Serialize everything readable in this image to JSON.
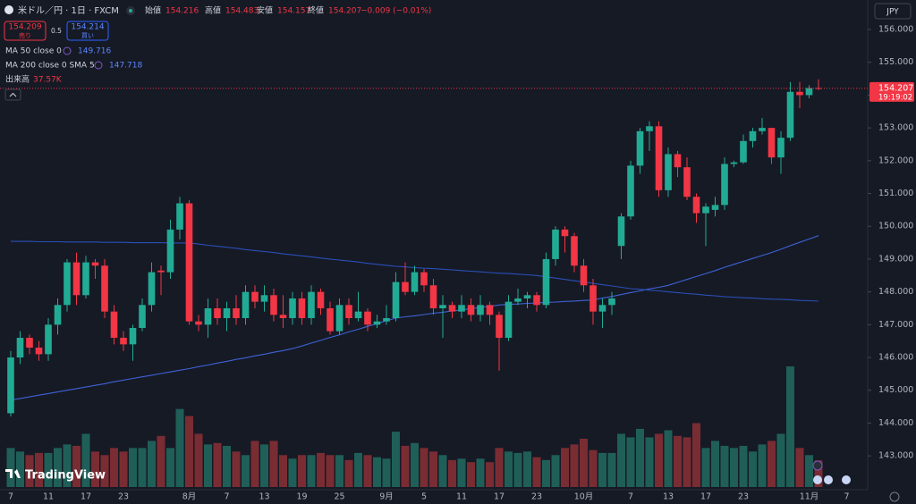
{
  "chart_data": {
    "type": "candlestick",
    "title": "米ドル／円 · 1日 · FXCM",
    "header_labels": {
      "open": "始値",
      "high": "高値",
      "low": "安値",
      "close": "終値"
    },
    "change": "−0.009 (−0.01%)",
    "sell": {
      "price": "154.209",
      "label": "売り"
    },
    "spread": "0.5",
    "buy": {
      "price": "154.214",
      "label": "買い"
    },
    "currency": "JPY",
    "countdown": "19:19:02",
    "brand": "TradingView",
    "volume_name": "出来高",
    "volume_label": "37.57K",
    "up_color": "#22ab94",
    "down_color": "#f23645",
    "volume_up_color": "#1f5f58",
    "volume_down_color": "#7a2c33",
    "grid": false,
    "ylim": [
      142.05,
      156.9
    ],
    "yticks": [
      {
        "value": 143,
        "label": "143.000"
      },
      {
        "value": 144,
        "label": "144.000"
      },
      {
        "value": 145,
        "label": "145.000"
      },
      {
        "value": 146,
        "label": "146.000"
      },
      {
        "value": 147,
        "label": "147.000"
      },
      {
        "value": 148,
        "label": "148.000"
      },
      {
        "value": 149,
        "label": "149.000"
      },
      {
        "value": 150,
        "label": "150.000"
      },
      {
        "value": 151,
        "label": "151.000"
      },
      {
        "value": 152,
        "label": "152.000"
      },
      {
        "value": 153,
        "label": "153.000"
      },
      {
        "value": 154,
        "label": "154.000"
      },
      {
        "value": 155,
        "label": "155.000"
      },
      {
        "value": 156,
        "label": "156.000"
      }
    ],
    "categories": [
      "7",
      null,
      null,
      null,
      "11",
      null,
      null,
      null,
      "17",
      null,
      null,
      null,
      "23",
      null,
      null,
      null,
      null,
      null,
      null,
      "8月",
      null,
      null,
      null,
      "7",
      null,
      null,
      null,
      "13",
      null,
      null,
      null,
      "19",
      null,
      null,
      null,
      "25",
      null,
      null,
      null,
      null,
      "9月",
      null,
      null,
      null,
      "5",
      null,
      null,
      null,
      "11",
      null,
      null,
      null,
      "17",
      null,
      null,
      null,
      "23",
      null,
      null,
      null,
      null,
      "10月",
      null,
      null,
      null,
      null,
      "7",
      null,
      null,
      null,
      "13",
      null,
      null,
      null,
      "17",
      null,
      null,
      null,
      "23",
      null,
      null,
      null,
      null,
      null,
      null,
      "11月",
      null,
      null,
      null,
      "7"
    ],
    "open": [
      144.3,
      146.0,
      146.6,
      146.3,
      146.1,
      147.0,
      147.6,
      148.9,
      147.9,
      148.9,
      148.8,
      147.4,
      146.6,
      146.4,
      146.9,
      147.6,
      148.65,
      148.6,
      149.9,
      150.7,
      147.1,
      147.0,
      147.5,
      147.2,
      147.5,
      147.2,
      148.0,
      147.7,
      147.9,
      147.3,
      147.2,
      147.8,
      147.2,
      148.0,
      147.5,
      146.8,
      147.6,
      147.2,
      147.4,
      147.0,
      147.1,
      147.2,
      148.3,
      148.0,
      148.6,
      148.2,
      147.5,
      147.6,
      147.4,
      147.6,
      147.3,
      147.6,
      147.3,
      146.6,
      147.7,
      147.8,
      147.9,
      147.6,
      149.0,
      149.9,
      149.7,
      148.8,
      148.2,
      147.4,
      147.6,
      149.4,
      150.3,
      151.85,
      152.9,
      153.05,
      151.1,
      152.2,
      151.8,
      150.9,
      150.4,
      150.5,
      150.65,
      151.9,
      151.95,
      152.6,
      152.9,
      153.0,
      152.1,
      152.7,
      154.1,
      154.0,
      154.216,
      null,
      null,
      null
    ],
    "high": [
      146.2,
      146.8,
      146.7,
      146.5,
      147.2,
      147.8,
      149.0,
      149.2,
      149.1,
      149.0,
      149.0,
      147.6,
      146.8,
      147.0,
      147.8,
      148.9,
      148.8,
      150.2,
      150.9,
      150.8,
      147.3,
      147.8,
      147.8,
      147.7,
      147.9,
      148.2,
      148.2,
      148.2,
      148.1,
      147.9,
      148.0,
      148.0,
      148.2,
      148.1,
      147.7,
      147.8,
      147.8,
      148.0,
      147.5,
      147.3,
      147.6,
      148.6,
      148.9,
      148.8,
      148.7,
      148.4,
      147.9,
      147.7,
      147.9,
      147.8,
      147.9,
      147.7,
      147.4,
      147.9,
      148.1,
      148.0,
      148.0,
      149.2,
      150.0,
      150.0,
      149.8,
      149.0,
      148.4,
      147.8,
      148.0,
      150.4,
      152.0,
      153.0,
      153.2,
      153.2,
      152.4,
      152.3,
      152.1,
      151.0,
      150.7,
      150.9,
      152.1,
      152.0,
      152.8,
      153.0,
      153.3,
      153.0,
      152.9,
      154.4,
      154.4,
      154.3,
      154.483,
      null,
      null,
      null
    ],
    "low": [
      144.2,
      145.8,
      146.1,
      145.9,
      145.9,
      146.7,
      147.4,
      147.6,
      147.8,
      148.4,
      147.2,
      146.4,
      146.2,
      145.9,
      146.8,
      147.4,
      147.9,
      148.4,
      149.6,
      147.0,
      146.8,
      146.6,
      147.0,
      146.8,
      147.0,
      147.0,
      147.5,
      147.4,
      147.1,
      146.9,
      147.0,
      147.0,
      147.0,
      147.3,
      146.7,
      146.7,
      147.0,
      147.1,
      146.8,
      146.9,
      147.0,
      147.1,
      147.9,
      147.9,
      148.0,
      147.3,
      146.6,
      147.2,
      147.2,
      147.1,
      147.1,
      147.0,
      145.6,
      146.5,
      147.6,
      147.5,
      147.4,
      147.5,
      148.8,
      149.2,
      148.6,
      148.0,
      147.0,
      146.9,
      147.3,
      149.0,
      150.2,
      151.6,
      152.3,
      150.9,
      150.9,
      151.5,
      150.8,
      150.1,
      149.4,
      150.3,
      150.5,
      151.8,
      151.9,
      152.4,
      152.8,
      151.9,
      151.6,
      152.6,
      153.6,
      153.9,
      154.157,
      null,
      null,
      null
    ],
    "close": [
      146.0,
      146.6,
      146.3,
      146.1,
      147.0,
      147.6,
      148.9,
      147.9,
      148.9,
      148.8,
      147.4,
      146.6,
      146.4,
      146.9,
      147.6,
      148.6,
      148.6,
      149.9,
      150.7,
      147.1,
      147.0,
      147.5,
      147.2,
      147.5,
      147.2,
      148.0,
      147.7,
      147.9,
      147.3,
      147.2,
      147.8,
      147.2,
      148.0,
      147.5,
      146.8,
      147.6,
      147.2,
      147.4,
      147.0,
      147.1,
      147.2,
      148.3,
      148.0,
      148.6,
      148.2,
      147.5,
      147.6,
      147.4,
      147.6,
      147.3,
      147.6,
      147.3,
      146.6,
      147.7,
      147.8,
      147.9,
      147.6,
      149.0,
      149.9,
      149.7,
      148.8,
      148.2,
      147.4,
      147.6,
      147.8,
      150.3,
      151.85,
      152.9,
      153.05,
      151.1,
      152.2,
      151.8,
      150.9,
      150.4,
      150.6,
      150.65,
      151.9,
      151.95,
      152.6,
      152.9,
      153.0,
      152.1,
      152.7,
      154.1,
      154.0,
      154.216,
      154.207,
      null,
      null,
      null
    ],
    "volume": [
      55,
      50,
      45,
      48,
      48,
      55,
      60,
      58,
      75,
      50,
      45,
      55,
      50,
      55,
      55,
      65,
      72,
      55,
      110,
      100,
      75,
      60,
      62,
      58,
      50,
      45,
      65,
      60,
      65,
      45,
      40,
      45,
      45,
      48,
      45,
      45,
      38,
      48,
      45,
      42,
      40,
      78,
      58,
      62,
      55,
      50,
      45,
      38,
      40,
      35,
      40,
      35,
      55,
      50,
      48,
      50,
      42,
      38,
      45,
      55,
      60,
      68,
      52,
      48,
      48,
      75,
      70,
      82,
      70,
      75,
      80,
      72,
      70,
      90,
      55,
      65,
      58,
      55,
      58,
      50,
      60,
      65,
      75,
      170,
      55,
      45,
      37.57,
      null,
      null,
      null
    ],
    "series": [
      {
        "name": "MA 50 close 0",
        "color": "#3d62d6",
        "values": [
          144.7,
          144.75,
          144.8,
          144.85,
          144.9,
          144.95,
          145.0,
          145.05,
          145.1,
          145.15,
          145.2,
          145.26,
          145.31,
          145.36,
          145.41,
          145.46,
          145.51,
          145.56,
          145.61,
          145.66,
          145.72,
          145.77,
          145.83,
          145.88,
          145.94,
          145.99,
          146.05,
          146.1,
          146.16,
          146.21,
          146.27,
          146.35,
          146.44,
          146.52,
          146.61,
          146.69,
          146.78,
          146.86,
          146.95,
          147.03,
          147.12,
          147.2,
          147.24,
          147.27,
          147.31,
          147.35,
          147.38,
          147.42,
          147.45,
          147.49,
          147.53,
          147.56,
          147.6,
          147.62,
          147.63,
          147.65,
          147.66,
          147.68,
          147.69,
          147.71,
          147.72,
          147.74,
          147.75,
          147.81,
          147.86,
          147.92,
          147.98,
          148.03,
          148.09,
          148.14,
          148.2,
          148.29,
          148.38,
          148.47,
          148.56,
          148.65,
          148.75,
          148.84,
          148.93,
          149.02,
          149.11,
          149.2,
          149.3,
          149.41,
          149.51,
          149.61,
          149.716,
          null,
          null,
          null
        ]
      },
      {
        "name": "MA 200 close 0 SMA 5",
        "color": "#2a4fb8",
        "values": [
          149.54,
          149.54,
          149.54,
          149.53,
          149.53,
          149.53,
          149.52,
          149.52,
          149.52,
          149.52,
          149.51,
          149.51,
          149.51,
          149.5,
          149.5,
          149.5,
          149.5,
          149.49,
          149.49,
          149.49,
          149.46,
          149.42,
          149.39,
          149.36,
          149.33,
          149.29,
          149.26,
          149.23,
          149.2,
          149.16,
          149.13,
          149.1,
          149.07,
          149.03,
          149.0,
          148.97,
          148.94,
          148.91,
          148.87,
          148.84,
          148.81,
          148.78,
          148.76,
          148.74,
          148.72,
          148.71,
          148.69,
          148.67,
          148.65,
          148.63,
          148.61,
          148.59,
          148.57,
          148.56,
          148.54,
          148.52,
          148.5,
          148.46,
          148.42,
          148.38,
          148.34,
          148.3,
          148.26,
          148.22,
          148.18,
          148.14,
          148.1,
          148.08,
          148.05,
          148.03,
          148.0,
          147.98,
          147.95,
          147.93,
          147.9,
          147.88,
          147.85,
          147.84,
          147.82,
          147.81,
          147.79,
          147.78,
          147.77,
          147.76,
          147.74,
          147.73,
          147.718,
          null,
          null,
          null
        ]
      }
    ]
  }
}
